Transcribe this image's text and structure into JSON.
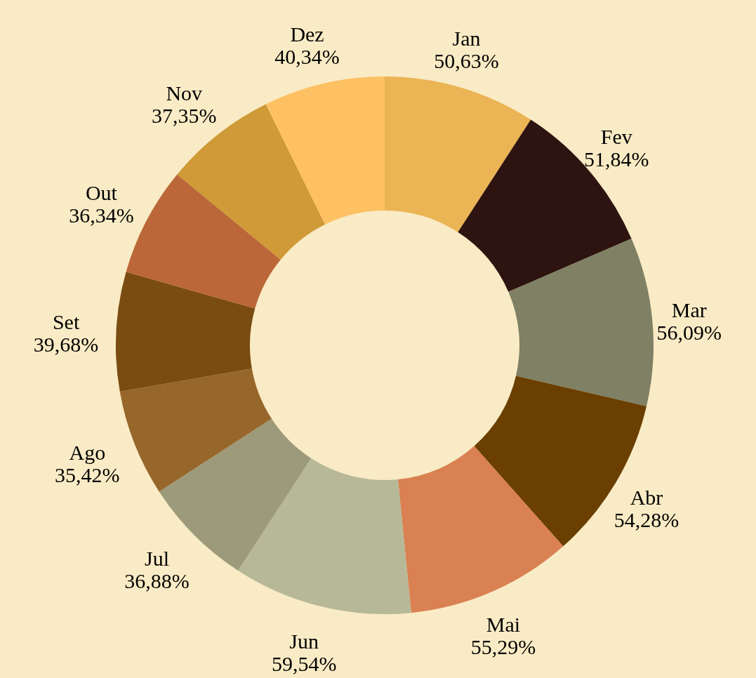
{
  "chart_data": {
    "type": "donut",
    "categories": [
      "Jan",
      "Fev",
      "Mar",
      "Abr",
      "Mai",
      "Jun",
      "Jul",
      "Ago",
      "Set",
      "Out",
      "Nov",
      "Dez"
    ],
    "values": [
      50.63,
      51.84,
      56.09,
      54.28,
      55.29,
      59.54,
      36.88,
      35.42,
      39.68,
      36.34,
      37.35,
      40.34
    ],
    "value_labels": [
      "50,63%",
      "51,84%",
      "56,09%",
      "54,28%",
      "55,29%",
      "59,54%",
      "36,88%",
      "35,42%",
      "39,68%",
      "36,34%",
      "37,35%",
      "40,34%"
    ],
    "colors": [
      "#ebb455",
      "#2e1410",
      "#7f8064",
      "#6a3f00",
      "#d98152",
      "#b7b898",
      "#9c9a7b",
      "#97662b",
      "#7a4c11",
      "#bb6739",
      "#cf9a37",
      "#fdc163"
    ]
  }
}
